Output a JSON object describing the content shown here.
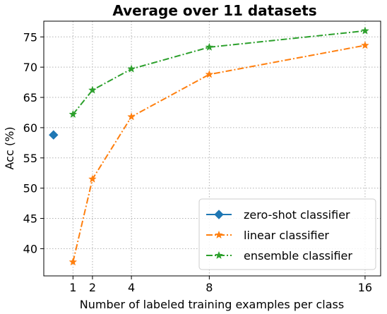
{
  "chart_data": {
    "type": "line",
    "title": "Average over 11 datasets",
    "xlabel": "Number of labeled training examples per class",
    "ylabel": "Acc (%)",
    "xticks": [
      1,
      2,
      4,
      8,
      16
    ],
    "yticks": [
      40,
      45,
      50,
      55,
      60,
      65,
      70,
      75
    ],
    "xlim": [
      -0.5,
      16.8
    ],
    "ylim": [
      35.5,
      77.6
    ],
    "grid": true,
    "legend_position": "bottom-right",
    "series": [
      {
        "name": "zero-shot classifier",
        "color": "#1f77b4",
        "marker": "diamond",
        "line_style": "solid",
        "x": [
          0
        ],
        "y": [
          58.8
        ]
      },
      {
        "name": "linear classifier",
        "color": "#ff7f0e",
        "marker": "star",
        "line_style": "dashdot",
        "x": [
          1,
          2,
          4,
          8,
          16
        ],
        "y": [
          37.8,
          51.5,
          61.8,
          68.8,
          73.6
        ]
      },
      {
        "name": "ensemble classifier",
        "color": "#2ca02c",
        "marker": "star",
        "line_style": "dashdot",
        "x": [
          1,
          2,
          4,
          8,
          16
        ],
        "y": [
          62.2,
          66.2,
          69.7,
          73.3,
          76.0
        ]
      }
    ]
  }
}
